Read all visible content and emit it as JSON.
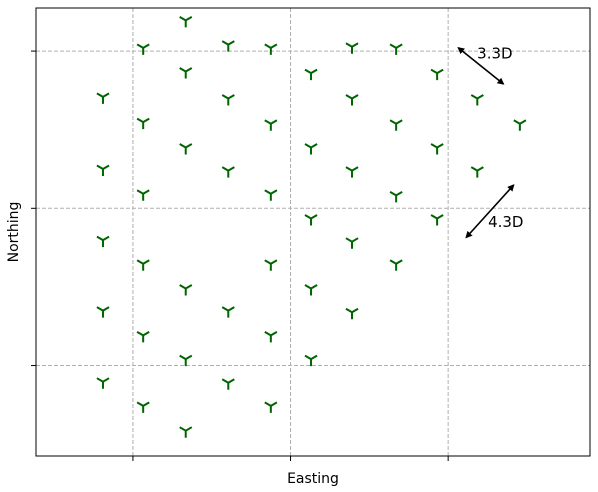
{
  "chart_data": {
    "type": "scatter",
    "title": "",
    "xlabel": "Easting",
    "ylabel": "Northing",
    "xlim": [
      -1.23,
      5.8
    ],
    "ylim": [
      -4.6,
      3.72
    ],
    "xticks": [
      0,
      2,
      4
    ],
    "yticks": [
      -2.92,
      0,
      2.92
    ],
    "grid": true,
    "marker": "tri-down",
    "marker_color": "#006400",
    "grid_color": "#b0b0b0",
    "turbines": [
      [
        0.67,
        3.49
      ],
      [
        1.21,
        3.04
      ],
      [
        0.13,
        2.98
      ],
      [
        1.75,
        2.98
      ],
      [
        2.78,
        3.0
      ],
      [
        3.34,
        2.98
      ],
      [
        0.67,
        2.54
      ],
      [
        2.26,
        2.51
      ],
      [
        3.86,
        2.51
      ],
      [
        -0.38,
        2.07
      ],
      [
        1.21,
        2.04
      ],
      [
        2.78,
        2.04
      ],
      [
        4.37,
        2.04
      ],
      [
        0.13,
        1.6
      ],
      [
        1.75,
        1.57
      ],
      [
        3.34,
        1.57
      ],
      [
        4.91,
        1.57
      ],
      [
        0.67,
        1.13
      ],
      [
        2.26,
        1.13
      ],
      [
        3.86,
        1.13
      ],
      [
        -0.38,
        0.73
      ],
      [
        1.21,
        0.7
      ],
      [
        2.78,
        0.7
      ],
      [
        4.37,
        0.7
      ],
      [
        0.13,
        0.27
      ],
      [
        1.75,
        0.27
      ],
      [
        3.34,
        0.24
      ],
      [
        2.26,
        -0.19
      ],
      [
        3.86,
        -0.19
      ],
      [
        -0.38,
        -0.59
      ],
      [
        2.78,
        -0.62
      ],
      [
        0.13,
        -1.03
      ],
      [
        1.75,
        -1.03
      ],
      [
        3.34,
        -1.03
      ],
      [
        0.67,
        -1.49
      ],
      [
        2.26,
        -1.49
      ],
      [
        -0.38,
        -1.9
      ],
      [
        1.21,
        -1.9
      ],
      [
        2.78,
        -1.93
      ],
      [
        0.13,
        -2.36
      ],
      [
        1.75,
        -2.36
      ],
      [
        0.67,
        -2.8
      ],
      [
        2.26,
        -2.8
      ],
      [
        -0.38,
        -3.22
      ],
      [
        1.21,
        -3.24
      ],
      [
        0.13,
        -3.67
      ],
      [
        1.75,
        -3.67
      ],
      [
        0.67,
        -4.13
      ]
    ],
    "annotations": [
      {
        "text": "3.3D",
        "from": [
          4.13,
          2.98
        ],
        "to": [
          4.7,
          2.31
        ]
      },
      {
        "text": "4.3D",
        "from": [
          4.23,
          -0.54
        ],
        "to": [
          4.83,
          0.43
        ]
      }
    ]
  }
}
